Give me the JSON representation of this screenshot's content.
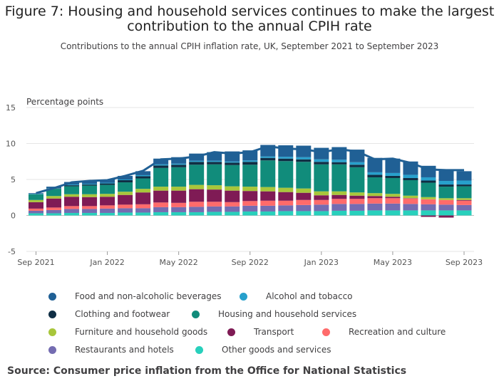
{
  "title": "Figure 7: Housing and household services continues to make the largest contribution to the annual CPIH rate",
  "subtitle": "Contributions to the annual CPIH inflation rate, UK, September 2021 to September 2023",
  "source": "Source: Consumer price inflation from the Office for National Statistics",
  "chart_data": {
    "type": "bar",
    "stacked": true,
    "ylabel": "Percentage points",
    "ylim": [
      -5,
      15
    ],
    "yticks": [
      15,
      10,
      5,
      0,
      -5
    ],
    "xticks": [
      "Sep 2021",
      "Jan 2022",
      "May 2022",
      "Sep 2022",
      "Jan 2023",
      "May 2023",
      "Sep 2023"
    ],
    "grid": true,
    "legend_position": "bottom",
    "categories": [
      "Sep 2021",
      "Oct 2021",
      "Nov 2021",
      "Dec 2021",
      "Jan 2022",
      "Feb 2022",
      "Mar 2022",
      "Apr 2022",
      "May 2022",
      "Jun 2022",
      "Jul 2022",
      "Aug 2022",
      "Sep 2022",
      "Oct 2022",
      "Nov 2022",
      "Dec 2022",
      "Jan 2023",
      "Feb 2023",
      "Mar 2023",
      "Apr 2023",
      "May 2023",
      "Jun 2023",
      "Jul 2023",
      "Aug 2023",
      "Sep 2023"
    ],
    "series": [
      {
        "name": "Other goods and services",
        "color": "#28d0bc",
        "values": [
          0.3,
          0.3,
          0.35,
          0.35,
          0.35,
          0.4,
          0.4,
          0.45,
          0.45,
          0.45,
          0.5,
          0.5,
          0.55,
          0.55,
          0.6,
          0.6,
          0.6,
          0.65,
          0.65,
          0.7,
          0.7,
          0.7,
          0.7,
          0.7,
          0.7
        ]
      },
      {
        "name": "Restaurants and hotels",
        "color": "#746cb1",
        "values": [
          0.35,
          0.45,
          0.55,
          0.55,
          0.6,
          0.6,
          0.6,
          0.7,
          0.7,
          0.75,
          0.75,
          0.75,
          0.8,
          0.8,
          0.8,
          0.85,
          0.9,
          0.95,
          0.95,
          0.95,
          0.95,
          0.9,
          0.85,
          0.8,
          0.75
        ]
      },
      {
        "name": "Recreation and culture",
        "color": "#ff6b6b",
        "values": [
          0.3,
          0.35,
          0.4,
          0.4,
          0.45,
          0.5,
          0.55,
          0.65,
          0.6,
          0.7,
          0.65,
          0.6,
          0.65,
          0.7,
          0.65,
          0.7,
          0.65,
          0.7,
          0.7,
          0.75,
          0.75,
          0.75,
          0.7,
          0.65,
          0.6
        ]
      },
      {
        "name": "Transport",
        "color": "#7f1b55",
        "values": [
          0.9,
          1.25,
          1.3,
          1.25,
          1.2,
          1.35,
          1.65,
          1.65,
          1.7,
          1.75,
          1.7,
          1.6,
          1.4,
          1.3,
          1.2,
          1.0,
          0.65,
          0.55,
          0.45,
          0.3,
          0.2,
          0.05,
          -0.2,
          -0.3,
          0.1
        ]
      },
      {
        "name": "Furniture and household goods",
        "color": "#a8c63b",
        "values": [
          0.3,
          0.35,
          0.35,
          0.4,
          0.4,
          0.45,
          0.5,
          0.55,
          0.55,
          0.6,
          0.6,
          0.6,
          0.6,
          0.6,
          0.6,
          0.6,
          0.55,
          0.5,
          0.45,
          0.4,
          0.4,
          0.35,
          0.3,
          0.25,
          0.25
        ]
      },
      {
        "name": "Housing and household services",
        "color": "#118c7b",
        "values": [
          0.8,
          1.0,
          1.1,
          1.2,
          1.25,
          1.3,
          1.45,
          2.6,
          2.7,
          2.8,
          2.9,
          2.95,
          3.05,
          3.7,
          3.7,
          3.7,
          3.75,
          3.75,
          3.5,
          2.2,
          2.2,
          2.15,
          2.0,
          1.6,
          1.65
        ]
      },
      {
        "name": "Clothing and footwear",
        "color": "#0f2e44",
        "values": [
          0.0,
          0.05,
          0.15,
          0.15,
          0.2,
          0.3,
          0.3,
          0.35,
          0.35,
          0.4,
          0.35,
          0.35,
          0.4,
          0.35,
          0.35,
          0.35,
          0.35,
          0.3,
          0.35,
          0.35,
          0.3,
          0.3,
          0.3,
          0.3,
          0.25
        ]
      },
      {
        "name": "Alcohol and tobacco",
        "color": "#27a0cc",
        "values": [
          0.05,
          0.05,
          0.1,
          0.1,
          0.1,
          0.1,
          0.15,
          0.15,
          0.15,
          0.15,
          0.15,
          0.15,
          0.2,
          0.2,
          0.25,
          0.3,
          0.35,
          0.35,
          0.35,
          0.35,
          0.4,
          0.45,
          0.45,
          0.5,
          0.55
        ]
      },
      {
        "name": "Food and non-alcoholic beverages",
        "color": "#206095",
        "values": [
          0.1,
          0.2,
          0.35,
          0.45,
          0.45,
          0.5,
          0.55,
          0.8,
          0.9,
          1.0,
          1.2,
          1.4,
          1.4,
          1.6,
          1.6,
          1.6,
          1.6,
          1.75,
          1.75,
          2.0,
          2.0,
          1.85,
          1.6,
          1.4,
          1.3
        ]
      }
    ],
    "total_line": {
      "name": "CPIH",
      "color": "#206095",
      "values": [
        3.1,
        3.8,
        4.6,
        4.8,
        4.9,
        5.5,
        6.2,
        7.8,
        7.9,
        8.2,
        8.8,
        8.6,
        8.8,
        9.6,
        9.3,
        9.2,
        8.8,
        9.2,
        8.9,
        7.8,
        7.9,
        7.3,
        6.4,
        6.3,
        6.3
      ]
    }
  },
  "legend": [
    {
      "label": "Food and non-alcoholic beverages",
      "color": "#206095"
    },
    {
      "label": "Alcohol and tobacco",
      "color": "#27a0cc"
    },
    {
      "label": "Clothing and footwear",
      "color": "#0f2e44"
    },
    {
      "label": "Housing and household services",
      "color": "#118c7b"
    },
    {
      "label": "Furniture and household goods",
      "color": "#a8c63b"
    },
    {
      "label": "Transport",
      "color": "#7f1b55"
    },
    {
      "label": "Recreation and culture",
      "color": "#ff6b6b"
    },
    {
      "label": "Restaurants and hotels",
      "color": "#746cb1"
    },
    {
      "label": "Other goods and services",
      "color": "#28d0bc"
    }
  ]
}
